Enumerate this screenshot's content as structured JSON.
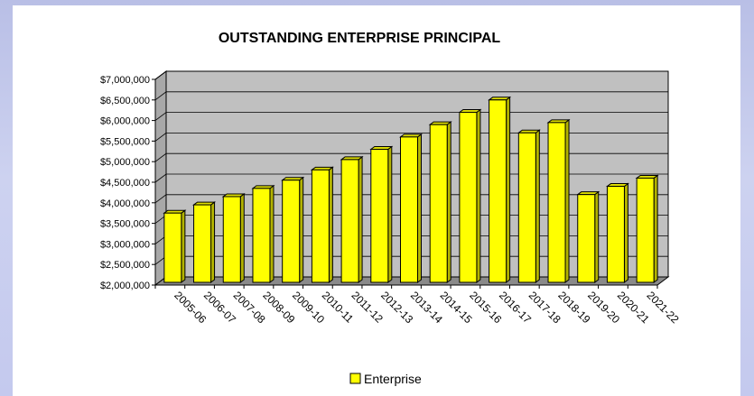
{
  "chart_data": {
    "type": "bar",
    "title": "OUTSTANDING ENTERPRISE PRINCIPAL",
    "xlabel": "",
    "ylabel": "",
    "categories": [
      "2005-06",
      "2006-07",
      "2007-08",
      "2008-09",
      "2009-10",
      "2010-11",
      "2011-12",
      "2012-13",
      "2013-14",
      "2014-15",
      "2015-16",
      "2016-17",
      "2017-18",
      "2018-19",
      "2019-20",
      "2020-21",
      "2021-22"
    ],
    "series": [
      {
        "name": "Enterprise",
        "values": [
          3750000,
          3950000,
          4150000,
          4350000,
          4550000,
          4800000,
          5050000,
          5300000,
          5600000,
          5900000,
          6200000,
          6500000,
          5700000,
          5950000,
          4200000,
          4400000,
          4600000
        ]
      }
    ],
    "ylim": [
      2000000,
      7000000
    ],
    "yticks": [
      2000000,
      2500000,
      3000000,
      3500000,
      4000000,
      4500000,
      5000000,
      5500000,
      6000000,
      6500000,
      7000000
    ],
    "ytick_labels": [
      "$2,000,000",
      "$2,500,000",
      "$3,000,000",
      "$3,500,000",
      "$4,000,000",
      "$4,500,000",
      "$5,000,000",
      "$5,500,000",
      "$6,000,000",
      "$6,500,000",
      "$7,000,000"
    ],
    "grid": true,
    "legend_position": "bottom",
    "colors": {
      "bar_face": "#ffff00",
      "bar_side": "#b3b300",
      "bar_top": "#dede00",
      "plot_back": "#c0c0c0",
      "plot_floor": "#8a8a8a",
      "plot_side": "#a8a8a8"
    }
  }
}
